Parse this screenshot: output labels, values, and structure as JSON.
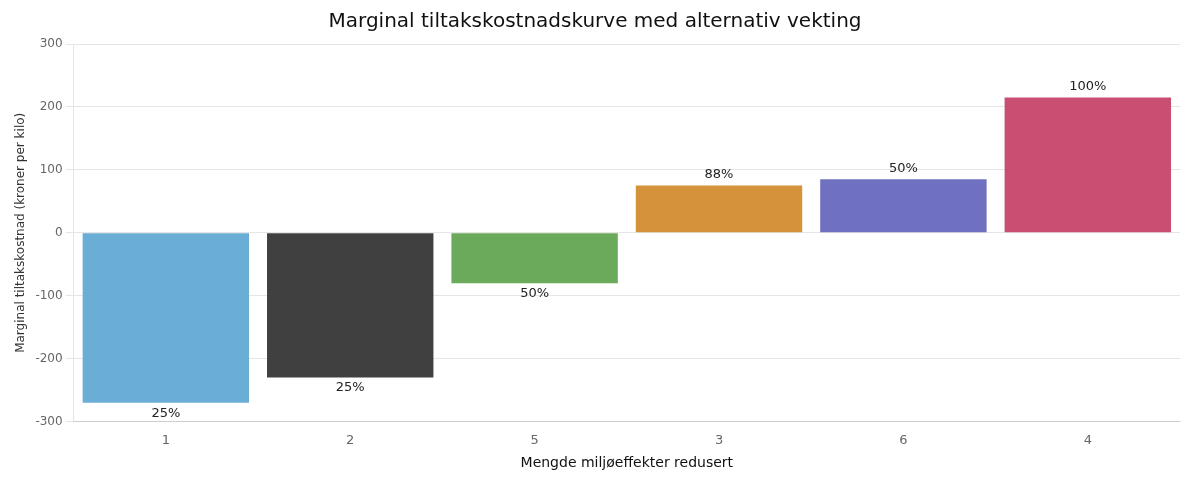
{
  "chart_data": {
    "type": "bar",
    "title": "Marginal tiltakskostnadskurve med alternativ vekting",
    "y_label": "Marginal tiltakskostnad (kroner per kilo)",
    "x_label": "Mengde miljøeffekter redusert",
    "categories": [
      "1",
      "2",
      "5",
      "3",
      "6",
      "4"
    ],
    "values": [
      -270,
      -230,
      -80,
      75,
      85,
      215
    ],
    "annotations": [
      "25%",
      "25%",
      "50%",
      "88%",
      "50%",
      "100%"
    ],
    "colors": [
      "#6aaed6",
      "#404040",
      "#6aaa5a",
      "#d4923a",
      "#7070c0",
      "#c94f72"
    ],
    "ylim": [
      -300,
      300
    ],
    "yticks": [
      -300,
      -200,
      -100,
      0,
      100,
      200,
      300
    ],
    "grid": true
  }
}
